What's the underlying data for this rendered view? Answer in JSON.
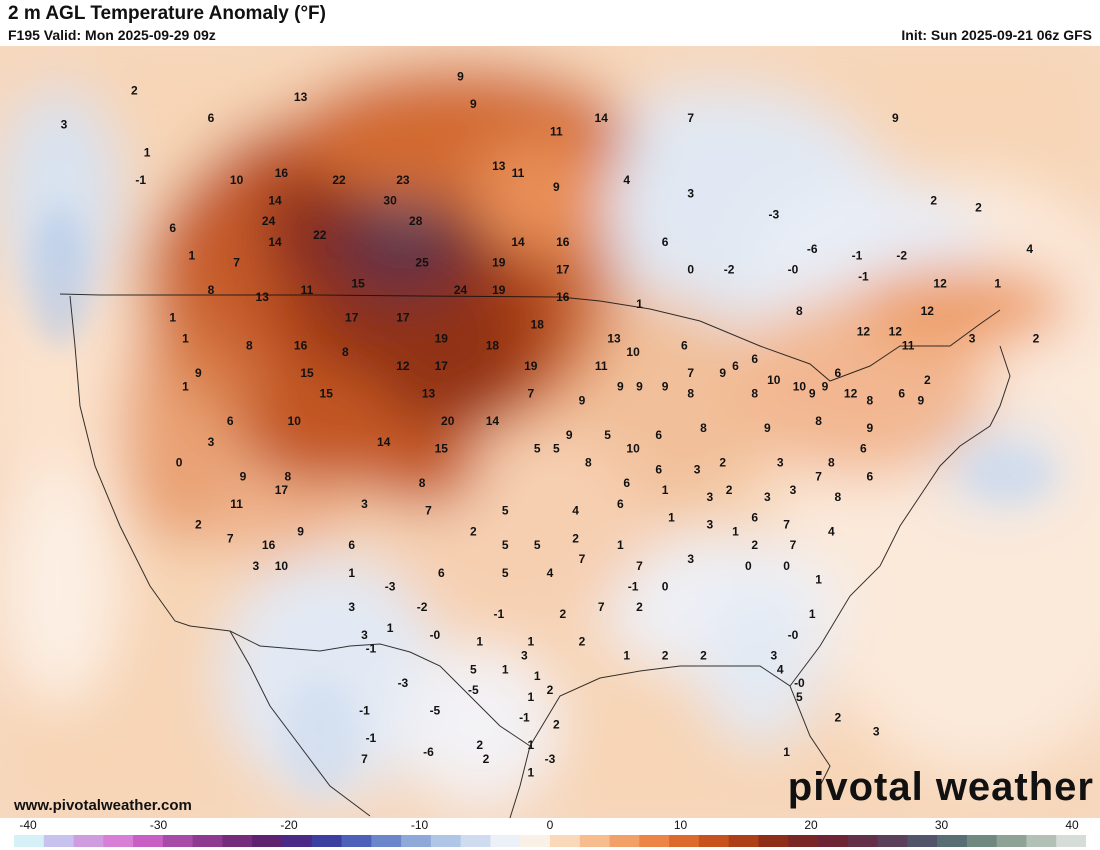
{
  "header": {
    "title": "2 m AGL Temperature Anomaly (°F)",
    "valid": "F195 Valid: Mon 2025-09-29 09z",
    "init": "Init: Sun 2025-09-21 06z GFS"
  },
  "footer": {
    "website": "www.pivotalweather.com",
    "brand": "pivotal weather"
  },
  "colorbar": {
    "min": -40,
    "max": 40,
    "tick_labels": [
      "-40",
      "-30",
      "-20",
      "-10",
      "0",
      "10",
      "20",
      "30",
      "40"
    ],
    "tick_values": [
      -40,
      -30,
      -20,
      -10,
      0,
      10,
      20,
      30,
      40
    ],
    "colors": [
      "#d6f0f7",
      "#c8c2ef",
      "#cf9cdf",
      "#d77ed7",
      "#c85fc4",
      "#a74aa8",
      "#8d3a90",
      "#752c7a",
      "#5e2270",
      "#4a2a86",
      "#3c3ea0",
      "#4d61b9",
      "#6c86cb",
      "#8ea8d9",
      "#b0c6e6",
      "#cfdcef",
      "#ecf0f7",
      "#faf1e6",
      "#fad8ba",
      "#f7bd8f",
      "#f2a068",
      "#eb8446",
      "#dc6a2c",
      "#c8521e",
      "#ad3f18",
      "#8f2e18",
      "#7a2624",
      "#6d2536",
      "#633047",
      "#5a4058",
      "#52556a",
      "#576e74",
      "#6f8880",
      "#8ea396",
      "#b3c0b6",
      "#d6ddd8"
    ]
  },
  "anomaly_labels": [
    {
      "text": "2",
      "lon": -127.5,
      "lat": 57.5
    },
    {
      "text": "3",
      "lon": -133.0,
      "lat": 55.0
    },
    {
      "text": "6",
      "lon": -121.5,
      "lat": 55.5
    },
    {
      "text": "1",
      "lon": -126.5,
      "lat": 53.0
    },
    {
      "text": "-1",
      "lon": -127.0,
      "lat": 51.0
    },
    {
      "text": "13",
      "lon": -114.5,
      "lat": 57.0
    },
    {
      "text": "9",
      "lon": -102.0,
      "lat": 58.5
    },
    {
      "text": "9",
      "lon": -101.0,
      "lat": 56.5
    },
    {
      "text": "14",
      "lon": -91.0,
      "lat": 55.5
    },
    {
      "text": "11",
      "lon": -94.5,
      "lat": 54.5
    },
    {
      "text": "7",
      "lon": -84.0,
      "lat": 55.5
    },
    {
      "text": "9",
      "lon": -68.0,
      "lat": 55.5
    },
    {
      "text": "10",
      "lon": -119.5,
      "lat": 51.0
    },
    {
      "text": "16",
      "lon": -116.0,
      "lat": 51.5
    },
    {
      "text": "22",
      "lon": -111.5,
      "lat": 51.0
    },
    {
      "text": "23",
      "lon": -106.5,
      "lat": 51.0
    },
    {
      "text": "30",
      "lon": -107.5,
      "lat": 49.5
    },
    {
      "text": "14",
      "lon": -116.5,
      "lat": 49.5
    },
    {
      "text": "24",
      "lon": -117.0,
      "lat": 48.0
    },
    {
      "text": "28",
      "lon": -105.5,
      "lat": 48.0
    },
    {
      "text": "13",
      "lon": -99.0,
      "lat": 52.0
    },
    {
      "text": "11",
      "lon": -97.5,
      "lat": 51.5
    },
    {
      "text": "9",
      "lon": -94.5,
      "lat": 50.5
    },
    {
      "text": "4",
      "lon": -89.0,
      "lat": 51.0
    },
    {
      "text": "3",
      "lon": -84.0,
      "lat": 50.0
    },
    {
      "text": "-3",
      "lon": -77.5,
      "lat": 48.5
    },
    {
      "text": "2",
      "lon": -65.0,
      "lat": 49.5
    },
    {
      "text": "2",
      "lon": -61.5,
      "lat": 49.0
    },
    {
      "text": "6",
      "lon": -124.5,
      "lat": 47.5
    },
    {
      "text": "14",
      "lon": -116.5,
      "lat": 46.5
    },
    {
      "text": "22",
      "lon": -113.0,
      "lat": 47.0
    },
    {
      "text": "14",
      "lon": -97.5,
      "lat": 46.5
    },
    {
      "text": "16",
      "lon": -94.0,
      "lat": 46.5
    },
    {
      "text": "6",
      "lon": -86.0,
      "lat": 46.5
    },
    {
      "text": "-6",
      "lon": -74.5,
      "lat": 46.0
    },
    {
      "text": "-1",
      "lon": -71.0,
      "lat": 45.5
    },
    {
      "text": "-2",
      "lon": -67.5,
      "lat": 45.5
    },
    {
      "text": "4",
      "lon": -57.5,
      "lat": 46.0
    },
    {
      "text": "1",
      "lon": -123.0,
      "lat": 45.5
    },
    {
      "text": "7",
      "lon": -119.5,
      "lat": 45.0
    },
    {
      "text": "25",
      "lon": -105.0,
      "lat": 45.0
    },
    {
      "text": "19",
      "lon": -99.0,
      "lat": 45.0
    },
    {
      "text": "17",
      "lon": -94.0,
      "lat": 44.5
    },
    {
      "text": "0",
      "lon": -84.0,
      "lat": 44.5
    },
    {
      "text": "-2",
      "lon": -81.0,
      "lat": 44.5
    },
    {
      "text": "-0",
      "lon": -76.0,
      "lat": 44.5
    },
    {
      "text": "-1",
      "lon": -70.5,
      "lat": 44.0
    },
    {
      "text": "12",
      "lon": -64.5,
      "lat": 43.5
    },
    {
      "text": "1",
      "lon": -60.0,
      "lat": 43.5
    },
    {
      "text": "8",
      "lon": -121.5,
      "lat": 43.0
    },
    {
      "text": "13",
      "lon": -117.5,
      "lat": 42.5
    },
    {
      "text": "11",
      "lon": -114.0,
      "lat": 43.0
    },
    {
      "text": "15",
      "lon": -110.0,
      "lat": 43.5
    },
    {
      "text": "24",
      "lon": -102.0,
      "lat": 43.0
    },
    {
      "text": "19",
      "lon": -99.0,
      "lat": 43.0
    },
    {
      "text": "16",
      "lon": -94.0,
      "lat": 42.5
    },
    {
      "text": "1",
      "lon": -88.0,
      "lat": 42.0
    },
    {
      "text": "8",
      "lon": -75.5,
      "lat": 41.5
    },
    {
      "text": "12",
      "lon": -65.5,
      "lat": 41.5
    },
    {
      "text": "1",
      "lon": -124.5,
      "lat": 41.0
    },
    {
      "text": "17",
      "lon": -110.5,
      "lat": 41.0
    },
    {
      "text": "17",
      "lon": -106.5,
      "lat": 41.0
    },
    {
      "text": "18",
      "lon": -96.0,
      "lat": 40.5
    },
    {
      "text": "13",
      "lon": -90.0,
      "lat": 39.5
    },
    {
      "text": "12",
      "lon": -70.5,
      "lat": 40.0
    },
    {
      "text": "12",
      "lon": -68.0,
      "lat": 40.0
    },
    {
      "text": "3",
      "lon": -62.0,
      "lat": 39.5
    },
    {
      "text": "2",
      "lon": -57.0,
      "lat": 39.5
    },
    {
      "text": "1",
      "lon": -123.5,
      "lat": 39.5
    },
    {
      "text": "8",
      "lon": -118.5,
      "lat": 39.0
    },
    {
      "text": "16",
      "lon": -114.5,
      "lat": 39.0
    },
    {
      "text": "8",
      "lon": -111.0,
      "lat": 38.5
    },
    {
      "text": "19",
      "lon": -103.5,
      "lat": 39.5
    },
    {
      "text": "18",
      "lon": -99.5,
      "lat": 39.0
    },
    {
      "text": "10",
      "lon": -88.5,
      "lat": 38.5
    },
    {
      "text": "6",
      "lon": -84.5,
      "lat": 39.0
    },
    {
      "text": "6",
      "lon": -79.0,
      "lat": 38.0
    },
    {
      "text": "11",
      "lon": -67.0,
      "lat": 39.0
    },
    {
      "text": "9",
      "lon": -122.5,
      "lat": 37.0
    },
    {
      "text": "15",
      "lon": -114.0,
      "lat": 37.0
    },
    {
      "text": "12",
      "lon": -106.5,
      "lat": 37.5
    },
    {
      "text": "17",
      "lon": -103.5,
      "lat": 37.5
    },
    {
      "text": "19",
      "lon": -96.5,
      "lat": 37.5
    },
    {
      "text": "11",
      "lon": -91.0,
      "lat": 37.5
    },
    {
      "text": "6",
      "lon": -80.5,
      "lat": 37.5
    },
    {
      "text": "7",
      "lon": -84.0,
      "lat": 37.0
    },
    {
      "text": "9",
      "lon": -81.5,
      "lat": 37.0
    },
    {
      "text": "10",
      "lon": -77.5,
      "lat": 36.5
    },
    {
      "text": "6",
      "lon": -72.5,
      "lat": 37.0
    },
    {
      "text": "9",
      "lon": -88.0,
      "lat": 36.0
    },
    {
      "text": "10",
      "lon": -75.5,
      "lat": 36.0
    },
    {
      "text": "9",
      "lon": -73.5,
      "lat": 36.0
    },
    {
      "text": "2",
      "lon": -65.5,
      "lat": 36.5
    },
    {
      "text": "1",
      "lon": -123.5,
      "lat": 36.0
    },
    {
      "text": "15",
      "lon": -112.5,
      "lat": 35.5
    },
    {
      "text": "13",
      "lon": -104.5,
      "lat": 35.5
    },
    {
      "text": "7",
      "lon": -96.5,
      "lat": 35.5
    },
    {
      "text": "9",
      "lon": -92.5,
      "lat": 35.0
    },
    {
      "text": "9",
      "lon": -89.5,
      "lat": 36.0
    },
    {
      "text": "9",
      "lon": -86.0,
      "lat": 36.0
    },
    {
      "text": "8",
      "lon": -84.0,
      "lat": 35.5
    },
    {
      "text": "8",
      "lon": -79.0,
      "lat": 35.5
    },
    {
      "text": "9",
      "lon": -74.5,
      "lat": 35.5
    },
    {
      "text": "12",
      "lon": -71.5,
      "lat": 35.5
    },
    {
      "text": "8",
      "lon": -70.0,
      "lat": 35.0
    },
    {
      "text": "9",
      "lon": -66.0,
      "lat": 35.0
    },
    {
      "text": "6",
      "lon": -67.5,
      "lat": 35.5
    },
    {
      "text": "6",
      "lon": -120.0,
      "lat": 33.5
    },
    {
      "text": "10",
      "lon": -115.0,
      "lat": 33.5
    },
    {
      "text": "20",
      "lon": -103.0,
      "lat": 33.5
    },
    {
      "text": "14",
      "lon": -99.5,
      "lat": 33.5
    },
    {
      "text": "9",
      "lon": -93.5,
      "lat": 32.5
    },
    {
      "text": "5",
      "lon": -90.5,
      "lat": 32.5
    },
    {
      "text": "10",
      "lon": -88.5,
      "lat": 31.5
    },
    {
      "text": "6",
      "lon": -86.5,
      "lat": 32.5
    },
    {
      "text": "8",
      "lon": -83.0,
      "lat": 33.0
    },
    {
      "text": "9",
      "lon": -78.0,
      "lat": 33.0
    },
    {
      "text": "8",
      "lon": -74.0,
      "lat": 33.5
    },
    {
      "text": "9",
      "lon": -70.0,
      "lat": 33.0
    },
    {
      "text": "3",
      "lon": -121.5,
      "lat": 32.0
    },
    {
      "text": "14",
      "lon": -108.0,
      "lat": 32.0
    },
    {
      "text": "15",
      "lon": -103.5,
      "lat": 31.5
    },
    {
      "text": "5",
      "lon": -96.0,
      "lat": 31.5
    },
    {
      "text": "5",
      "lon": -94.5,
      "lat": 31.5
    },
    {
      "text": "8",
      "lon": -92.0,
      "lat": 30.5
    },
    {
      "text": "6",
      "lon": -86.5,
      "lat": 30.0
    },
    {
      "text": "3",
      "lon": -83.5,
      "lat": 30.0
    },
    {
      "text": "2",
      "lon": -81.5,
      "lat": 30.5
    },
    {
      "text": "3",
      "lon": -77.0,
      "lat": 30.5
    },
    {
      "text": "8",
      "lon": -73.0,
      "lat": 30.5
    },
    {
      "text": "6",
      "lon": -70.5,
      "lat": 31.5
    },
    {
      "text": "7",
      "lon": -74.0,
      "lat": 29.5
    },
    {
      "text": "6",
      "lon": -70.0,
      "lat": 29.5
    },
    {
      "text": "0",
      "lon": -124.0,
      "lat": 30.5
    },
    {
      "text": "9",
      "lon": -119.0,
      "lat": 29.5
    },
    {
      "text": "8",
      "lon": -115.5,
      "lat": 29.5
    },
    {
      "text": "8",
      "lon": -105.0,
      "lat": 29.0
    },
    {
      "text": "6",
      "lon": -89.0,
      "lat": 29.0
    },
    {
      "text": "1",
      "lon": -86.0,
      "lat": 28.5
    },
    {
      "text": "3",
      "lon": -82.5,
      "lat": 28.0
    },
    {
      "text": "2",
      "lon": -81.0,
      "lat": 28.5
    },
    {
      "text": "3",
      "lon": -78.0,
      "lat": 28.0
    },
    {
      "text": "3",
      "lon": -76.0,
      "lat": 28.5
    },
    {
      "text": "8",
      "lon": -72.5,
      "lat": 28.0
    },
    {
      "text": "11",
      "lon": -119.5,
      "lat": 27.5
    },
    {
      "text": "17",
      "lon": -116.0,
      "lat": 28.5
    },
    {
      "text": "3",
      "lon": -109.5,
      "lat": 27.5
    },
    {
      "text": "7",
      "lon": -104.5,
      "lat": 27.0
    },
    {
      "text": "5",
      "lon": -98.5,
      "lat": 27.0
    },
    {
      "text": "4",
      "lon": -93.0,
      "lat": 27.0
    },
    {
      "text": "6",
      "lon": -89.5,
      "lat": 27.5
    },
    {
      "text": "1",
      "lon": -85.5,
      "lat": 26.5
    },
    {
      "text": "3",
      "lon": -82.5,
      "lat": 26.0
    },
    {
      "text": "6",
      "lon": -79.0,
      "lat": 26.5
    },
    {
      "text": "7",
      "lon": -76.5,
      "lat": 26.0
    },
    {
      "text": "4",
      "lon": -73.0,
      "lat": 25.5
    },
    {
      "text": "2",
      "lon": -122.5,
      "lat": 26.0
    },
    {
      "text": "7",
      "lon": -120.0,
      "lat": 25.0
    },
    {
      "text": "16",
      "lon": -117.0,
      "lat": 24.5
    },
    {
      "text": "9",
      "lon": -114.5,
      "lat": 25.5
    },
    {
      "text": "6",
      "lon": -110.5,
      "lat": 24.5
    },
    {
      "text": "2",
      "lon": -101.0,
      "lat": 25.5
    },
    {
      "text": "5",
      "lon": -98.5,
      "lat": 24.5
    },
    {
      "text": "5",
      "lon": -96.0,
      "lat": 24.5
    },
    {
      "text": "2",
      "lon": -93.0,
      "lat": 25.0
    },
    {
      "text": "1",
      "lon": -89.5,
      "lat": 24.5
    },
    {
      "text": "1",
      "lon": -80.5,
      "lat": 25.5
    },
    {
      "text": "2",
      "lon": -79.0,
      "lat": 24.5
    },
    {
      "text": "7",
      "lon": -76.0,
      "lat": 24.5
    },
    {
      "text": "3",
      "lon": -118.0,
      "lat": 23.0
    },
    {
      "text": "10",
      "lon": -116.0,
      "lat": 23.0
    },
    {
      "text": "1",
      "lon": -110.5,
      "lat": 22.5
    },
    {
      "text": "6",
      "lon": -103.5,
      "lat": 22.5
    },
    {
      "text": "5",
      "lon": -98.5,
      "lat": 22.5
    },
    {
      "text": "4",
      "lon": -95.0,
      "lat": 22.5
    },
    {
      "text": "7",
      "lon": -92.5,
      "lat": 23.5
    },
    {
      "text": "7",
      "lon": -88.0,
      "lat": 23.0
    },
    {
      "text": "3",
      "lon": -84.0,
      "lat": 23.5
    },
    {
      "text": "0",
      "lon": -79.5,
      "lat": 23.0
    },
    {
      "text": "0",
      "lon": -76.5,
      "lat": 23.0
    },
    {
      "text": "1",
      "lon": -74.0,
      "lat": 22.0
    },
    {
      "text": "-3",
      "lon": -107.5,
      "lat": 21.5
    },
    {
      "text": "-1",
      "lon": -88.5,
      "lat": 21.5
    },
    {
      "text": "0",
      "lon": -86.0,
      "lat": 21.5
    },
    {
      "text": "3",
      "lon": -110.5,
      "lat": 20.0
    },
    {
      "text": "-2",
      "lon": -105.0,
      "lat": 20.0
    },
    {
      "text": "-1",
      "lon": -99.0,
      "lat": 19.5
    },
    {
      "text": "2",
      "lon": -94.0,
      "lat": 19.5
    },
    {
      "text": "7",
      "lon": -91.0,
      "lat": 20.0
    },
    {
      "text": "2",
      "lon": -88.0,
      "lat": 20.0
    },
    {
      "text": "1",
      "lon": -74.5,
      "lat": 19.5
    },
    {
      "text": "3",
      "lon": -109.5,
      "lat": 18.0
    },
    {
      "text": "1",
      "lon": -107.5,
      "lat": 18.5
    },
    {
      "text": "-0",
      "lon": -104.0,
      "lat": 18.0
    },
    {
      "text": "1",
      "lon": -100.5,
      "lat": 17.5
    },
    {
      "text": "1",
      "lon": -96.5,
      "lat": 17.5
    },
    {
      "text": "2",
      "lon": -92.5,
      "lat": 17.5
    },
    {
      "text": "-0",
      "lon": -76.0,
      "lat": 18.0
    },
    {
      "text": "-1",
      "lon": -109.0,
      "lat": 17.0
    },
    {
      "text": "3",
      "lon": -97.0,
      "lat": 16.5
    },
    {
      "text": "1",
      "lon": -89.0,
      "lat": 16.5
    },
    {
      "text": "2",
      "lon": -86.0,
      "lat": 16.5
    },
    {
      "text": "2",
      "lon": -83.0,
      "lat": 16.5
    },
    {
      "text": "3",
      "lon": -77.5,
      "lat": 16.5
    },
    {
      "text": "4",
      "lon": -77.0,
      "lat": 15.5
    },
    {
      "text": "5",
      "lon": -101.0,
      "lat": 15.5
    },
    {
      "text": "1",
      "lon": -98.5,
      "lat": 15.5
    },
    {
      "text": "1",
      "lon": -96.0,
      "lat": 15.0
    },
    {
      "text": "2",
      "lon": -95.0,
      "lat": 14.0
    },
    {
      "text": "-0",
      "lon": -75.5,
      "lat": 14.5
    },
    {
      "text": "-3",
      "lon": -106.5,
      "lat": 14.5
    },
    {
      "text": "-5",
      "lon": -101.0,
      "lat": 14.0
    },
    {
      "text": "1",
      "lon": -96.5,
      "lat": 13.5
    },
    {
      "text": "5",
      "lon": -75.5,
      "lat": 13.5
    },
    {
      "text": "-1",
      "lon": -109.5,
      "lat": 12.5
    },
    {
      "text": "-5",
      "lon": -104.0,
      "lat": 12.5
    },
    {
      "text": "-1",
      "lon": -97.0,
      "lat": 12.0
    },
    {
      "text": "2",
      "lon": -94.5,
      "lat": 11.5
    },
    {
      "text": "2",
      "lon": -72.5,
      "lat": 12.0
    },
    {
      "text": "3",
      "lon": -69.5,
      "lat": 11.0
    },
    {
      "text": "-1",
      "lon": -109.0,
      "lat": 10.5
    },
    {
      "text": "2",
      "lon": -100.5,
      "lat": 10.0
    },
    {
      "text": "1",
      "lon": -96.5,
      "lat": 10.0
    },
    {
      "text": "-6",
      "lon": -104.5,
      "lat": 9.5
    },
    {
      "text": "2",
      "lon": -100.0,
      "lat": 9.0
    },
    {
      "text": "-3",
      "lon": -95.0,
      "lat": 9.0
    },
    {
      "text": "7",
      "lon": -109.5,
      "lat": 9.0
    },
    {
      "text": "1",
      "lon": -96.5,
      "lat": 8.0
    },
    {
      "text": "1",
      "lon": -76.5,
      "lat": 9.5
    }
  ]
}
